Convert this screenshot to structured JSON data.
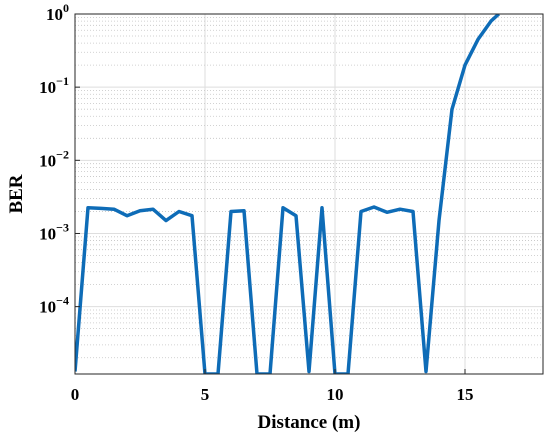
{
  "chart_data": {
    "type": "line",
    "xlabel": "Distance (m)",
    "ylabel": "BER",
    "xlim": [
      0,
      18
    ],
    "ylim": [
      1.2e-05,
      1
    ],
    "yscale": "log",
    "grid": true,
    "x_ticks": [
      "0",
      "5",
      "10",
      "15"
    ],
    "y_ticks": [
      {
        "base": "10",
        "exp": "0"
      },
      {
        "base": "10",
        "exp": "−1"
      },
      {
        "base": "10",
        "exp": "−2"
      },
      {
        "base": "10",
        "exp": "−3"
      },
      {
        "base": "10",
        "exp": "−4"
      }
    ],
    "line_color": "#0e6cb7",
    "series": [
      {
        "x": [
          0,
          0.5,
          1,
          1.5,
          2,
          2.5,
          3,
          3.5,
          4,
          4.5,
          5,
          5.5,
          6,
          6.5,
          7,
          7.5,
          8,
          8.5,
          9,
          9.5,
          10,
          10.5,
          11,
          11.5,
          12,
          12.5,
          13,
          13.5,
          14,
          14.5,
          15,
          15.5,
          16,
          16.3
        ],
        "y": [
          1.3e-05,
          0.00225,
          0.0022,
          0.00215,
          0.00175,
          0.00205,
          0.00215,
          0.0015,
          0.002,
          0.00175,
          1.2e-05,
          1.2e-05,
          0.002,
          0.00205,
          1.2e-05,
          1.2e-05,
          0.00225,
          0.00175,
          1.3e-05,
          0.00225,
          1.2e-05,
          1.2e-05,
          0.002,
          0.0023,
          0.00195,
          0.00215,
          0.002,
          1.3e-05,
          0.0015,
          0.05,
          0.2,
          0.45,
          0.8,
          1.0
        ]
      }
    ]
  }
}
